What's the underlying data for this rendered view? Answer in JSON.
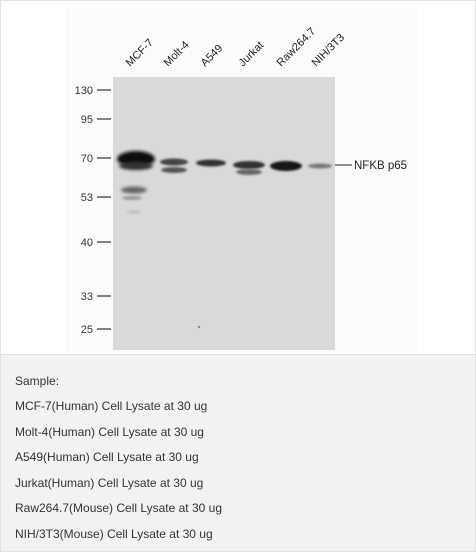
{
  "blot": {
    "lanes": [
      "MCF-7",
      "Molt-4",
      "A549",
      "Jurkat",
      "Raw264.7",
      "NIH/3T3"
    ],
    "markers": [
      "130",
      "95",
      "70",
      "53",
      "40",
      "33",
      "25"
    ],
    "band_label": "NFKB p65"
  },
  "caption": {
    "heading": "Sample:",
    "lines": [
      "MCF-7(Human) Cell Lysate at 30 ug",
      "Molt-4(Human) Cell Lysate at 30 ug",
      "A549(Human) Cell Lysate at 30 ug",
      "Jurkat(Human) Cell Lysate at 30 ug",
      "Raw264.7(Mouse) Cell Lysate at 30 ug",
      "NIH/3T3(Mouse) Cell Lysate at 30 ug"
    ]
  }
}
